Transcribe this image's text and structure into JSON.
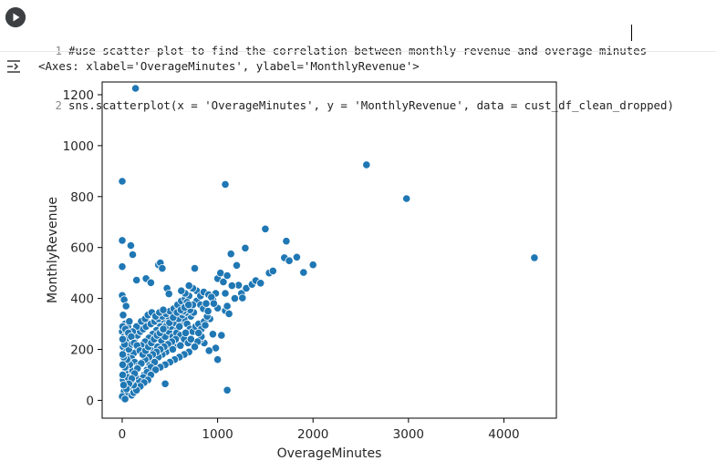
{
  "cell": {
    "code_lines": [
      {
        "num": "1",
        "text": "#use scatter plot to find the correlation between monthly revenue and overage minutes"
      },
      {
        "num": "2",
        "text": "sns.scatterplot(x = 'OverageMinutes', y = 'MonthlyRevenue', data = cust_df_clean_dropped)"
      }
    ],
    "output_text": "<Axes: xlabel='OverageMinutes', ylabel='MonthlyRevenue'>"
  },
  "colors": {
    "marker": "#1f77b4",
    "run_button": "#3c4043"
  },
  "icons": {
    "run": "play-circle-icon",
    "output": "output-toggle-icon"
  },
  "chart_data": {
    "type": "scatter",
    "title": "",
    "xlabel": "OverageMinutes",
    "ylabel": "MonthlyRevenue",
    "xlim": [
      -210,
      4550
    ],
    "ylim": [
      -70,
      1250
    ],
    "xticks": [
      0,
      1000,
      2000,
      3000,
      4000
    ],
    "yticks": [
      0,
      200,
      400,
      600,
      800,
      1000,
      1200
    ],
    "grid": false,
    "legend": "none",
    "series": [
      {
        "points": [
          [
            140,
            1225
          ],
          [
            2560,
            925
          ],
          [
            0,
            860
          ],
          [
            1080,
            848
          ],
          [
            2980,
            792
          ],
          [
            4320,
            560
          ],
          [
            1500,
            673
          ],
          [
            1720,
            625
          ],
          [
            1290,
            598
          ],
          [
            0,
            628
          ],
          [
            90,
            608
          ],
          [
            110,
            572
          ],
          [
            150,
            472
          ],
          [
            250,
            478
          ],
          [
            300,
            462
          ],
          [
            380,
            532
          ],
          [
            400,
            540
          ],
          [
            420,
            518
          ],
          [
            470,
            440
          ],
          [
            490,
            418
          ],
          [
            0,
            525
          ],
          [
            760,
            518
          ],
          [
            1000,
            478
          ],
          [
            1030,
            500
          ],
          [
            1060,
            465
          ],
          [
            1100,
            490
          ],
          [
            1140,
            575
          ],
          [
            1200,
            530
          ],
          [
            1220,
            452
          ],
          [
            1250,
            420
          ],
          [
            1260,
            402
          ],
          [
            1300,
            440
          ],
          [
            1360,
            455
          ],
          [
            1400,
            470
          ],
          [
            1450,
            460
          ],
          [
            1540,
            500
          ],
          [
            1580,
            508
          ],
          [
            1700,
            560
          ],
          [
            1750,
            548
          ],
          [
            1830,
            562
          ],
          [
            1900,
            502
          ],
          [
            2000,
            532
          ],
          [
            1080,
            352
          ],
          [
            1100,
            370
          ],
          [
            1120,
            340
          ],
          [
            950,
            395
          ],
          [
            980,
            420
          ],
          [
            1000,
            362
          ],
          [
            920,
            320
          ],
          [
            950,
            260
          ],
          [
            1040,
            255
          ],
          [
            980,
            205
          ],
          [
            910,
            195
          ],
          [
            860,
            225
          ],
          [
            820,
            240
          ],
          [
            1000,
            160
          ],
          [
            1100,
            40
          ],
          [
            450,
            65
          ],
          [
            0,
            412
          ],
          [
            20,
            395
          ],
          [
            40,
            370
          ],
          [
            10,
            335
          ],
          [
            30,
            300
          ],
          [
            60,
            290
          ],
          [
            0,
            270
          ],
          [
            20,
            250
          ],
          [
            50,
            230
          ],
          [
            10,
            210
          ],
          [
            40,
            190
          ],
          [
            70,
            170
          ],
          [
            20,
            150
          ],
          [
            60,
            130
          ],
          [
            30,
            110
          ],
          [
            90,
            95
          ],
          [
            10,
            80
          ],
          [
            40,
            60
          ],
          [
            80,
            50
          ],
          [
            20,
            35
          ],
          [
            60,
            25
          ],
          [
            100,
            20
          ],
          [
            0,
            15
          ],
          [
            30,
            5
          ],
          [
            120,
            30
          ],
          [
            150,
            45
          ],
          [
            180,
            60
          ],
          [
            200,
            80
          ],
          [
            230,
            100
          ],
          [
            260,
            120
          ],
          [
            290,
            140
          ],
          [
            320,
            160
          ],
          [
            350,
            180
          ],
          [
            380,
            200
          ],
          [
            410,
            215
          ],
          [
            440,
            230
          ],
          [
            470,
            245
          ],
          [
            500,
            260
          ],
          [
            530,
            275
          ],
          [
            560,
            285
          ],
          [
            590,
            300
          ],
          [
            620,
            310
          ],
          [
            650,
            320
          ],
          [
            680,
            300
          ],
          [
            710,
            280
          ],
          [
            740,
            270
          ],
          [
            770,
            290
          ],
          [
            800,
            300
          ],
          [
            830,
            280
          ],
          [
            860,
            310
          ],
          [
            890,
            330
          ],
          [
            720,
            330
          ],
          [
            750,
            345
          ],
          [
            690,
            360
          ],
          [
            640,
            370
          ],
          [
            600,
            340
          ],
          [
            560,
            330
          ],
          [
            520,
            310
          ],
          [
            480,
            320
          ],
          [
            440,
            305
          ],
          [
            400,
            290
          ],
          [
            360,
            275
          ],
          [
            320,
            260
          ],
          [
            280,
            245
          ],
          [
            240,
            230
          ],
          [
            200,
            215
          ],
          [
            160,
            200
          ],
          [
            120,
            185
          ],
          [
            100,
            165
          ],
          [
            130,
            150
          ],
          [
            170,
            135
          ],
          [
            210,
            150
          ],
          [
            250,
            165
          ],
          [
            290,
            180
          ],
          [
            330,
            195
          ],
          [
            370,
            210
          ],
          [
            410,
            235
          ],
          [
            450,
            250
          ],
          [
            490,
            270
          ],
          [
            530,
            250
          ],
          [
            570,
            265
          ],
          [
            610,
            255
          ],
          [
            650,
            240
          ],
          [
            690,
            225
          ],
          [
            580,
            220
          ],
          [
            540,
            210
          ],
          [
            500,
            200
          ],
          [
            460,
            190
          ],
          [
            420,
            180
          ],
          [
            380,
            170
          ],
          [
            340,
            150
          ],
          [
            300,
            130
          ],
          [
            260,
            110
          ],
          [
            220,
            90
          ],
          [
            180,
            75
          ],
          [
            140,
            95
          ],
          [
            110,
            115
          ],
          [
            80,
            140
          ],
          [
            50,
            160
          ],
          [
            70,
            200
          ],
          [
            100,
            220
          ],
          [
            130,
            240
          ],
          [
            160,
            255
          ],
          [
            190,
            270
          ],
          [
            220,
            280
          ],
          [
            250,
            290
          ],
          [
            150,
            290
          ],
          [
            110,
            270
          ],
          [
            80,
            255
          ],
          [
            40,
            240
          ],
          [
            300,
            300
          ],
          [
            340,
            310
          ],
          [
            380,
            320
          ],
          [
            420,
            330
          ],
          [
            460,
            340
          ],
          [
            500,
            350
          ],
          [
            540,
            360
          ],
          [
            580,
            375
          ],
          [
            620,
            390
          ],
          [
            660,
            400
          ],
          [
            700,
            410
          ],
          [
            780,
            390
          ],
          [
            820,
            375
          ],
          [
            850,
            360
          ],
          [
            780,
            430
          ],
          [
            740,
            440
          ],
          [
            700,
            450
          ],
          [
            660,
            420
          ],
          [
            620,
            430
          ],
          [
            820,
            410
          ],
          [
            880,
            380
          ],
          [
            900,
            350
          ],
          [
            870,
            295
          ],
          [
            830,
            250
          ],
          [
            790,
            230
          ],
          [
            760,
            210
          ],
          [
            700,
            190
          ],
          [
            650,
            180
          ],
          [
            600,
            170
          ],
          [
            550,
            160
          ],
          [
            500,
            150
          ],
          [
            450,
            140
          ],
          [
            400,
            130
          ],
          [
            350,
            120
          ],
          [
            300,
            100
          ],
          [
            270,
            80
          ],
          [
            230,
            70
          ],
          [
            190,
            55
          ],
          [
            150,
            40
          ],
          [
            120,
            60
          ],
          [
            90,
            75
          ],
          [
            60,
            90
          ],
          [
            30,
            130
          ],
          [
            15,
            170
          ],
          [
            25,
            220
          ],
          [
            45,
            270
          ],
          [
            75,
            310
          ],
          [
            200,
            310
          ],
          [
            240,
            320
          ],
          [
            270,
            335
          ],
          [
            310,
            345
          ],
          [
            350,
            330
          ],
          [
            390,
            345
          ],
          [
            430,
            355
          ],
          [
            470,
            300
          ],
          [
            510,
            290
          ],
          [
            550,
            305
          ],
          [
            590,
            320
          ],
          [
            630,
            335
          ],
          [
            670,
            345
          ],
          [
            710,
            355
          ],
          [
            740,
            375
          ],
          [
            680,
            385
          ],
          [
            640,
            350
          ],
          [
            600,
            290
          ],
          [
            560,
            240
          ],
          [
            520,
            230
          ],
          [
            480,
            220
          ],
          [
            440,
            210
          ],
          [
            400,
            200
          ],
          [
            360,
            190
          ],
          [
            320,
            180
          ],
          [
            280,
            170
          ],
          [
            240,
            160
          ],
          [
            200,
            145
          ],
          [
            160,
            125
          ],
          [
            130,
            105
          ],
          [
            100,
            85
          ],
          [
            70,
            65
          ],
          [
            45,
            45
          ],
          [
            15,
            60
          ],
          [
            5,
            100
          ],
          [
            5,
            140
          ],
          [
            5,
            180
          ],
          [
            5,
            240
          ],
          [
            5,
            290
          ],
          [
            35,
            280
          ],
          [
            65,
            265
          ],
          [
            95,
            250
          ],
          [
            125,
            225
          ],
          [
            155,
            215
          ],
          [
            185,
            195
          ],
          [
            215,
            180
          ],
          [
            245,
            195
          ],
          [
            275,
            210
          ],
          [
            305,
            225
          ],
          [
            335,
            240
          ],
          [
            365,
            255
          ],
          [
            395,
            265
          ],
          [
            425,
            280
          ],
          [
            455,
            290
          ],
          [
            495,
            305
          ],
          [
            535,
            325
          ],
          [
            575,
            345
          ],
          [
            615,
            355
          ],
          [
            655,
            365
          ],
          [
            695,
            375
          ],
          [
            855,
            425
          ],
          [
            905,
            415
          ],
          [
            935,
            405
          ],
          [
            960,
            380
          ],
          [
            1080,
            420
          ],
          [
            1150,
            450
          ],
          [
            1180,
            400
          ],
          [
            430,
            280
          ],
          [
            530,
            200
          ],
          [
            610,
            215
          ],
          [
            665,
            265
          ],
          [
            720,
            240
          ],
          [
            800,
            265
          ]
        ]
      }
    ]
  }
}
